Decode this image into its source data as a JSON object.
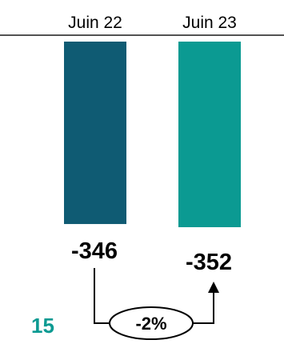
{
  "chart_data": {
    "type": "bar",
    "categories": [
      "Juin 22",
      "Juin 23"
    ],
    "values": [
      -346,
      -352
    ],
    "value_labels": [
      "-346",
      "-352"
    ],
    "colors": [
      "#0f5b73",
      "#0b9a92"
    ],
    "title": "",
    "xlabel": "",
    "ylabel": "",
    "change_label": "-2%"
  },
  "page_number": "15"
}
